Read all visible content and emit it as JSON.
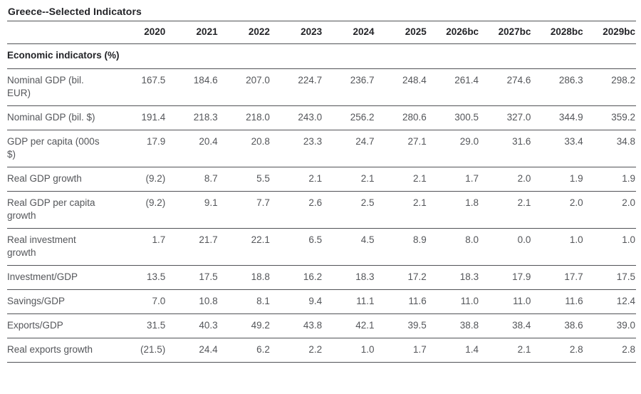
{
  "title": "Greece--Selected Indicators",
  "table": {
    "section_header": "Economic indicators (%)",
    "year_columns": [
      "2020",
      "2021",
      "2022",
      "2023",
      "2024",
      "2025",
      "2026bc",
      "2027bc",
      "2028bc",
      "2029bc"
    ],
    "rows": [
      {
        "label": "Nominal GDP (bil. EUR)",
        "values": [
          "167.5",
          "184.6",
          "207.0",
          "224.7",
          "236.7",
          "248.4",
          "261.4",
          "274.6",
          "286.3",
          "298.2"
        ]
      },
      {
        "label": "Nominal GDP (bil. $)",
        "values": [
          "191.4",
          "218.3",
          "218.0",
          "243.0",
          "256.2",
          "280.6",
          "300.5",
          "327.0",
          "344.9",
          "359.2"
        ]
      },
      {
        "label": "GDP per capita (000s $)",
        "values": [
          "17.9",
          "20.4",
          "20.8",
          "23.3",
          "24.7",
          "27.1",
          "29.0",
          "31.6",
          "33.4",
          "34.8"
        ]
      },
      {
        "label": "Real GDP growth",
        "values": [
          "(9.2)",
          "8.7",
          "5.5",
          "2.1",
          "2.1",
          "2.1",
          "1.7",
          "2.0",
          "1.9",
          "1.9"
        ]
      },
      {
        "label": "Real GDP per capita growth",
        "values": [
          "(9.2)",
          "9.1",
          "7.7",
          "2.6",
          "2.5",
          "2.1",
          "1.8",
          "2.1",
          "2.0",
          "2.0"
        ]
      },
      {
        "label": "Real investment growth",
        "values": [
          "1.7",
          "21.7",
          "22.1",
          "6.5",
          "4.5",
          "8.9",
          "8.0",
          "0.0",
          "1.0",
          "1.0"
        ]
      },
      {
        "label": "Investment/GDP",
        "values": [
          "13.5",
          "17.5",
          "18.8",
          "16.2",
          "18.3",
          "17.2",
          "18.3",
          "17.9",
          "17.7",
          "17.5"
        ]
      },
      {
        "label": "Savings/GDP",
        "values": [
          "7.0",
          "10.8",
          "8.1",
          "9.4",
          "11.1",
          "11.6",
          "11.0",
          "11.0",
          "11.6",
          "12.4"
        ]
      },
      {
        "label": "Exports/GDP",
        "values": [
          "31.5",
          "40.3",
          "49.2",
          "43.8",
          "42.1",
          "39.5",
          "38.8",
          "38.4",
          "38.6",
          "39.0"
        ]
      },
      {
        "label": "Real exports growth",
        "values": [
          "(21.5)",
          "24.4",
          "6.2",
          "2.2",
          "1.0",
          "1.7",
          "1.4",
          "2.1",
          "2.8",
          "2.8"
        ]
      }
    ]
  },
  "colors": {
    "rule": "#515256",
    "body_text": "#54565a",
    "heading_text": "#232428",
    "background": "#ffffff"
  }
}
